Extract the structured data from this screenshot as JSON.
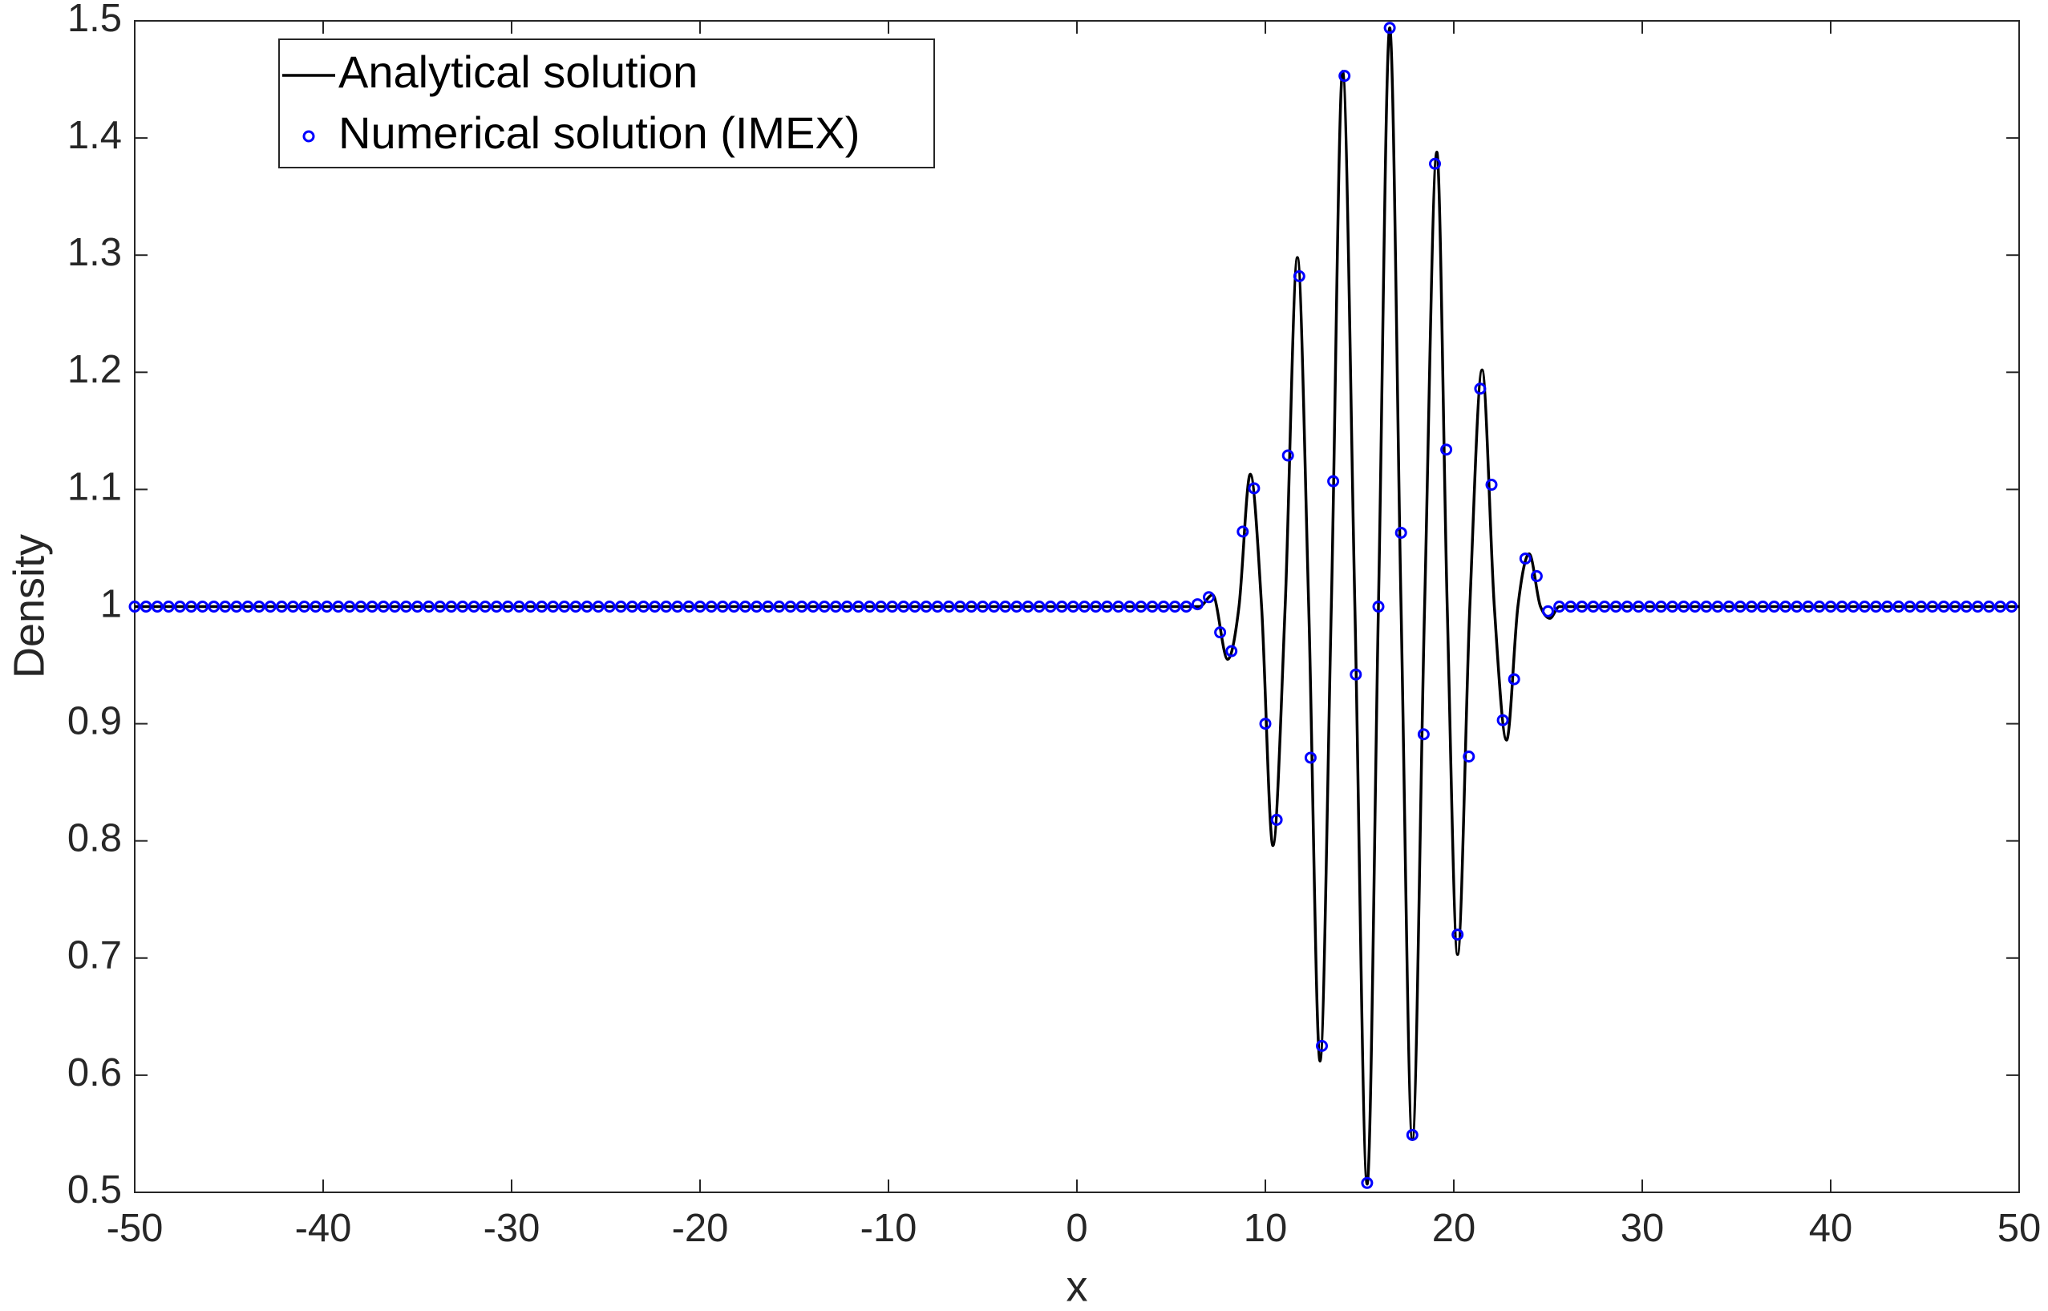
{
  "chart_data": {
    "type": "line",
    "xlabel": "x",
    "ylabel": "Density",
    "xlim": [
      -50,
      50
    ],
    "ylim": [
      0.5,
      1.5
    ],
    "xticks": [
      -50,
      -40,
      -30,
      -20,
      -10,
      0,
      10,
      20,
      30,
      40,
      50
    ],
    "yticks": [
      0.5,
      0.6,
      0.7,
      0.8,
      0.9,
      1,
      1.1,
      1.2,
      1.3,
      1.4,
      1.5
    ],
    "grid": false,
    "legend": "upper left",
    "series": [
      {
        "name": "Analytical solution",
        "color": "#000000",
        "style": "line",
        "x": [
          -50,
          6.5,
          7.2,
          8.0,
          8.6,
          9.2,
          9.8,
          10.4,
          11.05,
          11.7,
          12.3,
          12.9,
          13.5,
          14.1,
          14.75,
          15.4,
          16.0,
          16.6,
          17.2,
          17.8,
          18.45,
          19.1,
          19.65,
          20.2,
          20.85,
          21.5,
          22.15,
          22.8,
          23.4,
          24.0,
          24.6,
          25.1,
          25.6,
          50
        ],
        "values": [
          1,
          1,
          1.01,
          0.955,
          1,
          1.113,
          1,
          0.796,
          1,
          1.298,
          1,
          0.612,
          1,
          1.457,
          1,
          0.507,
          1,
          1.494,
          1,
          0.545,
          1,
          1.388,
          1,
          0.703,
          1,
          1.202,
          1,
          0.886,
          1,
          1.045,
          1,
          0.99,
          1,
          1
        ]
      },
      {
        "name": "Numerical solution (IMEX)",
        "color": "#0000ff",
        "style": "markers",
        "x": [
          -50,
          -49.4,
          -48.8,
          -48.2,
          -47.6,
          -47,
          -46.4,
          -45.8,
          -45.2,
          -44.6,
          -44,
          -43.4,
          -42.8,
          -42.2,
          -41.6,
          -41,
          -40.4,
          -39.8,
          -39.2,
          -38.6,
          -38,
          -37.4,
          -36.8,
          -36.2,
          -35.6,
          -35,
          -34.4,
          -33.8,
          -33.2,
          -32.6,
          -32,
          -31.4,
          -30.8,
          -30.2,
          -29.6,
          -29,
          -28.4,
          -27.8,
          -27.2,
          -26.6,
          -26,
          -25.4,
          -24.8,
          -24.2,
          -23.6,
          -23,
          -22.4,
          -21.8,
          -21.2,
          -20.6,
          -20,
          -19.4,
          -18.8,
          -18.2,
          -17.6,
          -17,
          -16.4,
          -15.8,
          -15.2,
          -14.6,
          -14,
          -13.4,
          -12.8,
          -12.2,
          -11.6,
          -11,
          -10.4,
          -9.8,
          -9.2,
          -8.6,
          -8,
          -7.4,
          -6.8,
          -6.2,
          -5.6,
          -5,
          -4.4,
          -3.8,
          -3.2,
          -2.6,
          -2,
          -1.4,
          -0.8,
          -0.2,
          0.4,
          1,
          1.6,
          2.2,
          2.8,
          3.4,
          4,
          4.6,
          5.2,
          5.8,
          6.4,
          7,
          7.6,
          8.2,
          8.8,
          9.4,
          10,
          10.6,
          11.2,
          11.8,
          12.4,
          13,
          13.6,
          14.2,
          14.8,
          15.4,
          16,
          16.6,
          17.2,
          17.8,
          18.4,
          19,
          19.6,
          20.2,
          20.8,
          21.4,
          22,
          22.6,
          23.2,
          23.8,
          24.4,
          25,
          25.6,
          26.2,
          26.8,
          27.4,
          28,
          28.6,
          29.2,
          29.8,
          30.4,
          31,
          31.6,
          32.2,
          32.8,
          33.4,
          34,
          34.6,
          35.2,
          35.8,
          36.4,
          37,
          37.6,
          38.2,
          38.8,
          39.4,
          40,
          40.6,
          41.2,
          41.8,
          42.4,
          43,
          43.6,
          44.2,
          44.8,
          45.4,
          46,
          46.6,
          47.2,
          47.8,
          48.4,
          49,
          49.6
        ],
        "values": [
          1,
          1,
          1,
          1,
          1,
          1,
          1,
          1,
          1,
          1,
          1,
          1,
          1,
          1,
          1,
          1,
          1,
          1,
          1,
          1,
          1,
          1,
          1,
          1,
          1,
          1,
          1,
          1,
          1,
          1,
          1,
          1,
          1,
          1,
          1,
          1,
          1,
          1,
          1,
          1,
          1,
          1,
          1,
          1,
          1,
          1,
          1,
          1,
          1,
          1,
          1,
          1,
          1,
          1,
          1,
          1,
          1,
          1,
          1,
          1,
          1,
          1,
          1,
          1,
          1,
          1,
          1,
          1,
          1,
          1,
          1,
          1,
          1,
          1,
          1,
          1,
          1,
          1,
          1,
          1,
          1,
          1,
          1,
          1,
          1,
          1,
          1,
          1,
          1,
          1,
          1,
          1,
          1,
          1,
          1.002,
          1.008,
          0.978,
          0.962,
          1.064,
          1.101,
          0.9,
          0.818,
          1.129,
          1.282,
          0.871,
          0.625,
          1.107,
          1.453,
          0.942,
          0.508,
          1,
          1.494,
          1.063,
          0.549,
          0.891,
          1.378,
          1.134,
          0.72,
          0.872,
          1.186,
          1.104,
          0.903,
          0.938,
          1.041,
          1.026,
          0.996,
          1,
          1,
          1,
          1,
          1,
          1,
          1,
          1,
          1,
          1,
          1,
          1,
          1,
          1,
          1,
          1,
          1,
          1,
          1,
          1,
          1,
          1,
          1,
          1,
          1,
          1,
          1,
          1,
          1,
          1,
          1,
          1,
          1,
          1,
          1,
          1,
          1,
          1,
          1,
          1,
          1
        ]
      }
    ]
  }
}
